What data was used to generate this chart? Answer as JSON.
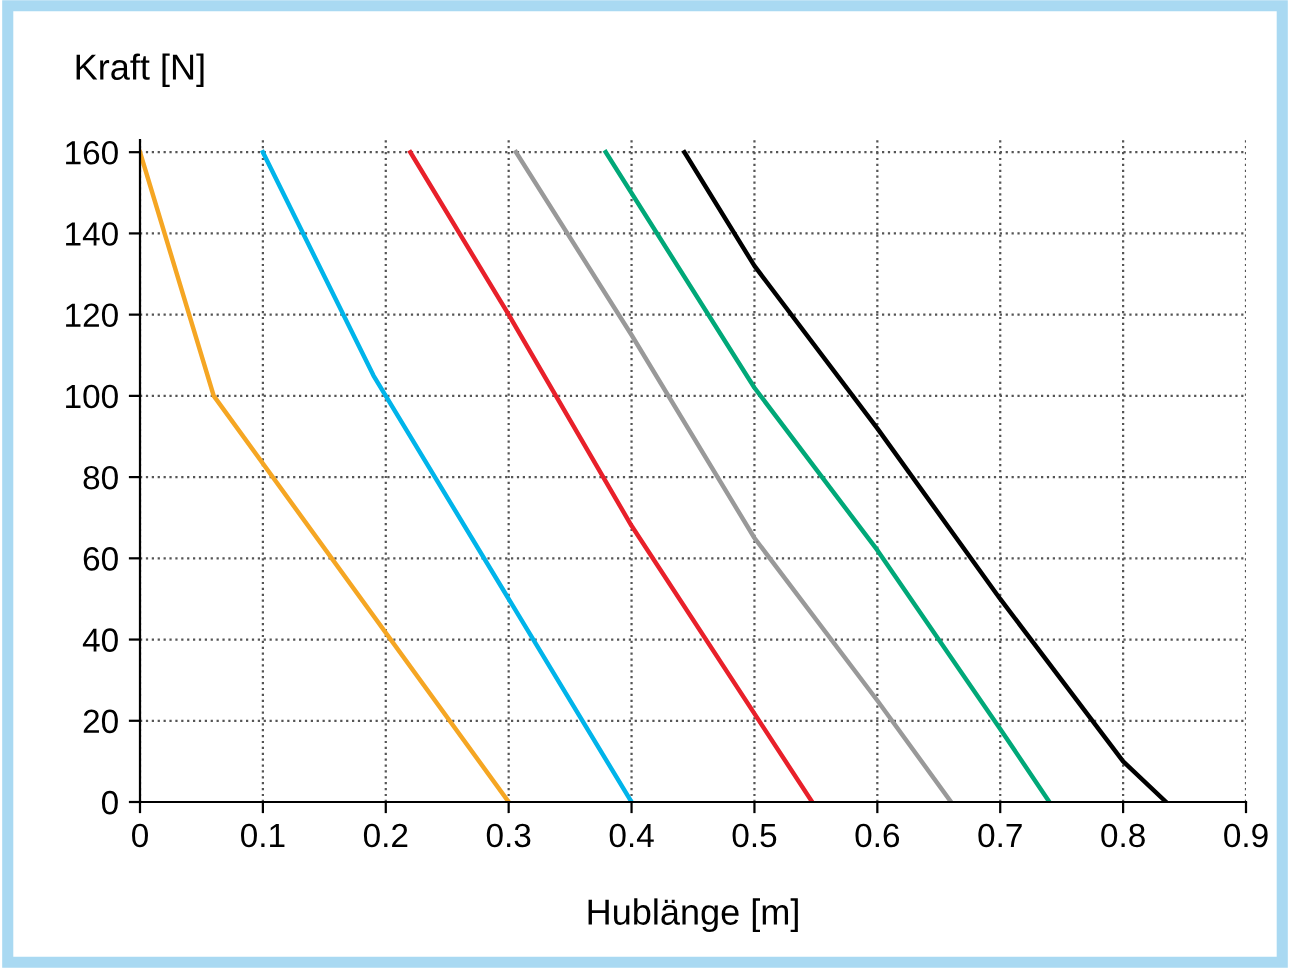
{
  "chart_data": {
    "type": "line",
    "xlabel": "Hublänge [m]",
    "ylabel": "Kraft [N]",
    "series": [
      {
        "color": "#f5a623",
        "x": [
          0,
          0.06,
          0.3
        ],
        "values": [
          160,
          100,
          0
        ]
      },
      {
        "color": "#00b4ea",
        "x": [
          0.1,
          0.19,
          0.4
        ],
        "values": [
          160,
          105,
          0
        ]
      },
      {
        "color": "#e8202a",
        "x": [
          0.22,
          0.3,
          0.4,
          0.547
        ],
        "values": [
          160,
          120,
          68,
          0
        ]
      },
      {
        "color": "#999999",
        "x": [
          0.306,
          0.4,
          0.5,
          0.6,
          0.66
        ],
        "values": [
          160,
          115,
          65,
          25,
          0
        ]
      },
      {
        "color": "#00a878",
        "x": [
          0.379,
          0.5,
          0.6,
          0.7,
          0.74
        ],
        "values": [
          160,
          102,
          62,
          18,
          0
        ]
      },
      {
        "color": "#000000",
        "x": [
          0.443,
          0.5,
          0.6,
          0.7,
          0.8,
          0.835
        ],
        "values": [
          160,
          132,
          92,
          50,
          10,
          0
        ]
      }
    ],
    "xlim": [
      0,
      0.9
    ],
    "ylim": [
      0,
      163
    ],
    "xticks": [
      0,
      0.1,
      0.2,
      0.3,
      0.4,
      0.5,
      0.6,
      0.7,
      0.8,
      0.9
    ],
    "yticks": [
      0,
      20,
      40,
      60,
      80,
      100,
      120,
      140,
      160
    ],
    "grid": true,
    "line_style": "solid",
    "marker": "none"
  }
}
